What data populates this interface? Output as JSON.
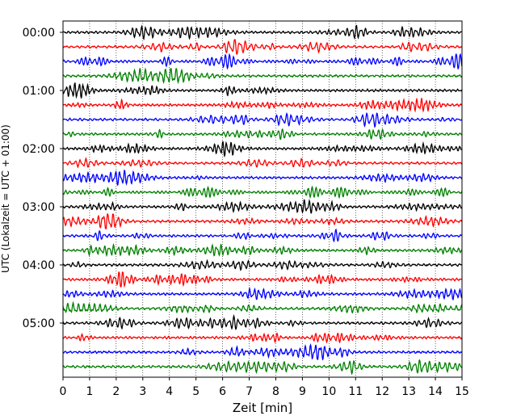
{
  "chart_data": {
    "type": "line",
    "title": "",
    "xlabel": "Zeit  [min]",
    "ylabel": "UTC (Lokalzeit = UTC + 01:00)",
    "xlim": [
      0,
      15
    ],
    "x_ticks": [
      "0",
      "1",
      "2",
      "3",
      "4",
      "5",
      "6",
      "7",
      "8",
      "9",
      "10",
      "11",
      "12",
      "13",
      "14",
      "15"
    ],
    "y_ticks": [
      "00:00",
      "01:00",
      "02:00",
      "03:00",
      "04:00",
      "05:00"
    ],
    "traces_per_hour": 4,
    "trace_count": 24,
    "trace_colors": [
      "#000000",
      "#ff0000",
      "#0000ff",
      "#008000"
    ],
    "grid": "vertical dotted",
    "legend": "none"
  }
}
